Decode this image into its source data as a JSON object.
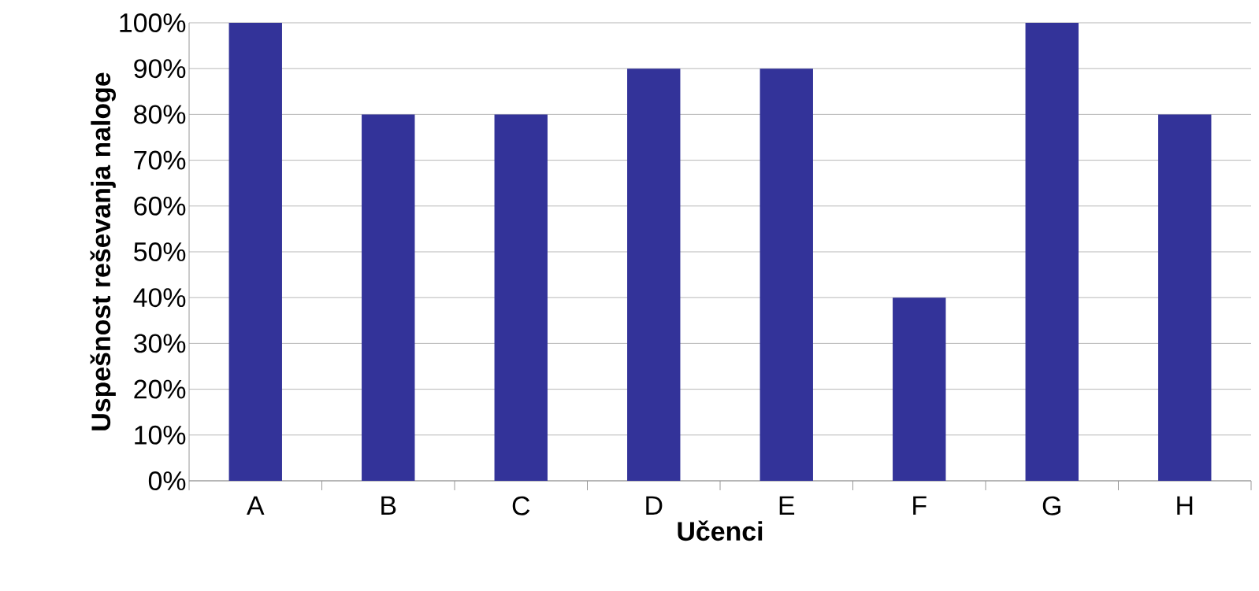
{
  "chart_data": {
    "type": "bar",
    "xlabel": "Učenci",
    "ylabel": "Uspešnost reševanja naloge",
    "categories": [
      "A",
      "B",
      "C",
      "D",
      "E",
      "F",
      "G",
      "H"
    ],
    "values": [
      100,
      80,
      80,
      90,
      90,
      40,
      100,
      80
    ],
    "color": "#333399",
    "ylim": [
      0,
      100
    ],
    "yticks": [
      {
        "value": 0,
        "label": "0%"
      },
      {
        "value": 10,
        "label": "10%"
      },
      {
        "value": 20,
        "label": "20%"
      },
      {
        "value": 30,
        "label": "30%"
      },
      {
        "value": 40,
        "label": "40%"
      },
      {
        "value": 50,
        "label": "50%"
      },
      {
        "value": 60,
        "label": "60%"
      },
      {
        "value": 70,
        "label": "70%"
      },
      {
        "value": 80,
        "label": "80%"
      },
      {
        "value": 90,
        "label": "90%"
      },
      {
        "value": 100,
        "label": "100%"
      }
    ],
    "grid": "y"
  }
}
